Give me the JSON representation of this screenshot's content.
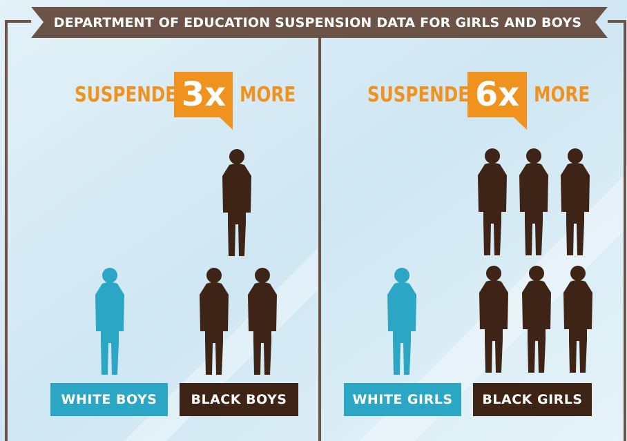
{
  "header": {
    "title": "DEPARTMENT OF EDUCATION SUSPENSION DATA FOR GIRLS AND BOYS"
  },
  "panels": [
    {
      "prefix": "SUSPENDED",
      "multiplier": "3x",
      "suffix": "MORE",
      "groups": [
        "WHITE BOYS",
        "BLACK BOYS"
      ]
    },
    {
      "prefix": "SUSPENDED",
      "multiplier": "6x",
      "suffix": "MORE",
      "groups": [
        "WHITE GIRLS",
        "BLACK GIRLS"
      ]
    }
  ]
}
